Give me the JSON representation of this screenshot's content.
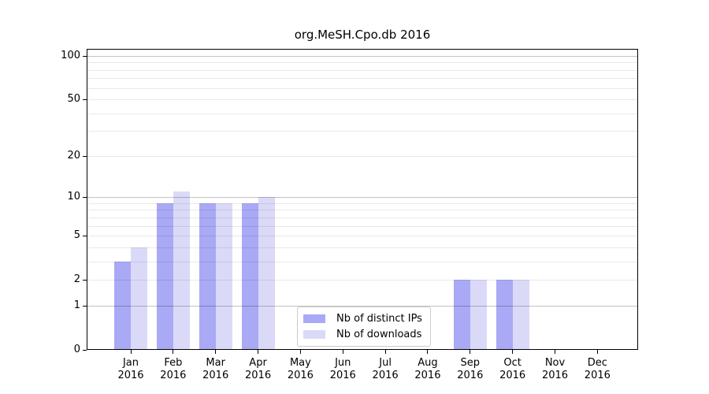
{
  "chart_data": {
    "type": "bar",
    "title": "org.MeSH.Cpo.db 2016",
    "categories": [
      {
        "month": "Jan",
        "year": "2016"
      },
      {
        "month": "Feb",
        "year": "2016"
      },
      {
        "month": "Mar",
        "year": "2016"
      },
      {
        "month": "Apr",
        "year": "2016"
      },
      {
        "month": "May",
        "year": "2016"
      },
      {
        "month": "Jun",
        "year": "2016"
      },
      {
        "month": "Jul",
        "year": "2016"
      },
      {
        "month": "Aug",
        "year": "2016"
      },
      {
        "month": "Sep",
        "year": "2016"
      },
      {
        "month": "Oct",
        "year": "2016"
      },
      {
        "month": "Nov",
        "year": "2016"
      },
      {
        "month": "Dec",
        "year": "2016"
      }
    ],
    "series": [
      {
        "name": "Nb of distinct IPs",
        "color": "#a9a9f5",
        "values": [
          3,
          9,
          9,
          9,
          0,
          0,
          0,
          0,
          2,
          2,
          0,
          0
        ]
      },
      {
        "name": "Nb of downloads",
        "color": "#dadaf8",
        "values": [
          4,
          11,
          9,
          10,
          0,
          0,
          0,
          0,
          2,
          2,
          0,
          0
        ]
      }
    ],
    "yscale": "log10(value+1)",
    "ylim": [
      0,
      110
    ],
    "yticks": [
      {
        "value": 0,
        "label": "0"
      },
      {
        "value": 1,
        "label": "1"
      },
      {
        "value": 2,
        "label": "2"
      },
      {
        "value": 5,
        "label": "5"
      },
      {
        "value": 10,
        "label": "10"
      },
      {
        "value": 20,
        "label": "20"
      },
      {
        "value": 50,
        "label": "50"
      },
      {
        "value": 100,
        "label": "100"
      }
    ],
    "major_gridlines": [
      1,
      10,
      100
    ],
    "light_gridlines": [
      2,
      3,
      4,
      5,
      6,
      7,
      8,
      9,
      20,
      30,
      40,
      50,
      60,
      70,
      80,
      90
    ],
    "grid_on": true,
    "legend_position": "lower center",
    "colors": {
      "bar_distinct_ips": "#a9a9f5",
      "bar_downloads": "#dadaf8",
      "grid_major": "#c2c2c2",
      "grid_minor": "#e8e8e8",
      "spine": "#000000"
    }
  }
}
